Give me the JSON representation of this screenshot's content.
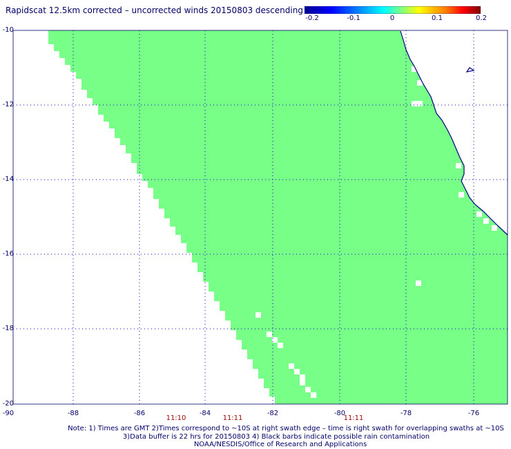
{
  "title": "Rapidscat 12.5km corrected – uncorrected winds 20150803 descending",
  "colorbar": {
    "ticks": [
      "-0.2",
      "-0.1",
      "0",
      "0.1",
      "0.2"
    ],
    "colors": [
      "#00008f",
      "#0000ff",
      "#0080ff",
      "#00ffff",
      "#80ff80",
      "#ffff00",
      "#ff8000",
      "#ff0000",
      "#800000"
    ]
  },
  "map": {
    "lat_labels": [
      "-10",
      "-12",
      "-14",
      "-16",
      "-18",
      "-20"
    ],
    "lon_labels": [
      "-90",
      "-88",
      "-86",
      "-84",
      "-82",
      "-80",
      "-78",
      "-76"
    ],
    "swath_color": "#77ff88",
    "coast_color": "#000080",
    "grid_color": "#0000cc"
  },
  "times": [
    "11:10",
    "11:11",
    "11:11"
  ],
  "notes": [
    "Note: 1) Times are GMT 2)Times correspond to ~10S at right swath edge – time is right swath for overlapping swaths at ~10S",
    "3)Data buffer is 22 hrs for 20150803 4) Black barbs indicate possible rain contamination",
    "NOAA/NESDIS/Office of Research and Applications"
  ]
}
